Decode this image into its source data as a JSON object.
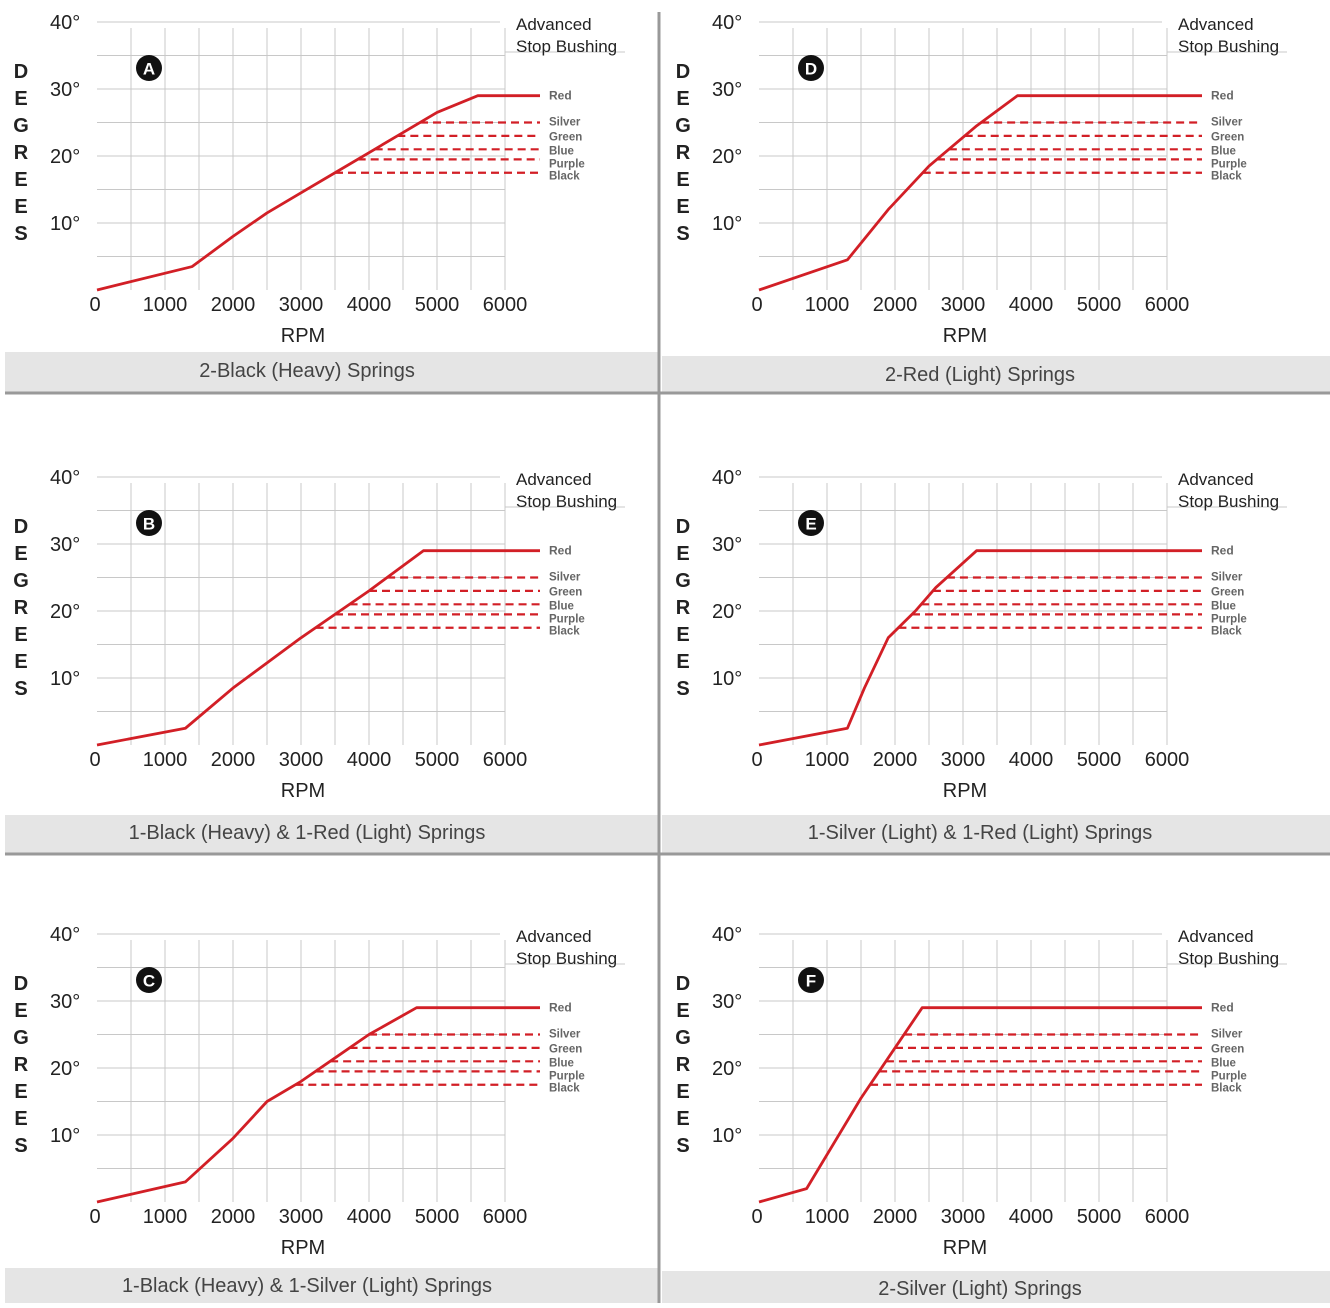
{
  "colors": {
    "curve": "#d21f26",
    "grid": "#c8c8c8",
    "caption_bg": "#e5e5e5",
    "divider": "#999999",
    "text": "#222222",
    "badge": "#111111"
  },
  "chart_data": [
    {
      "type": "line",
      "badge": "A",
      "caption": "2-Black (Heavy) Springs",
      "xlabel": "RPM",
      "ylabel": [
        "D",
        "E",
        "G",
        "R",
        "E",
        "E",
        "S"
      ],
      "xticks": [
        "0",
        "1000",
        "2000",
        "3000",
        "4000",
        "5000",
        "6000"
      ],
      "yticks": [
        "10°",
        "20°",
        "30°",
        "40°"
      ],
      "xlim": [
        0,
        6000
      ],
      "ylim": [
        0,
        40
      ],
      "bushing_label": [
        "Advanced",
        "Stop Bushing"
      ],
      "curve": [
        [
          0,
          0
        ],
        [
          1400,
          3.5
        ],
        [
          2000,
          8
        ],
        [
          2500,
          11.5
        ],
        [
          3000,
          14.5
        ],
        [
          3500,
          17.5
        ],
        [
          4000,
          20.5
        ],
        [
          4500,
          23.5
        ],
        [
          5000,
          26.5
        ],
        [
          5600,
          29
        ]
      ],
      "stops": [
        {
          "label": "Red",
          "degrees": 29
        },
        {
          "label": "Silver",
          "degrees": 25
        },
        {
          "label": "Green",
          "degrees": 23
        },
        {
          "label": "Blue",
          "degrees": 21
        },
        {
          "label": "Purple",
          "degrees": 19.5
        },
        {
          "label": "Black",
          "degrees": 17.5
        }
      ]
    },
    {
      "type": "line",
      "badge": "D",
      "caption": "2-Red (Light) Springs",
      "xlabel": "RPM",
      "ylabel": [
        "D",
        "E",
        "G",
        "R",
        "E",
        "E",
        "S"
      ],
      "xticks": [
        "0",
        "1000",
        "2000",
        "3000",
        "4000",
        "5000",
        "6000"
      ],
      "yticks": [
        "10°",
        "20°",
        "30°",
        "40°"
      ],
      "xlim": [
        0,
        6000
      ],
      "ylim": [
        0,
        40
      ],
      "bushing_label": [
        "Advanced",
        "Stop Bushing"
      ],
      "curve": [
        [
          0,
          0
        ],
        [
          1300,
          4.5
        ],
        [
          1900,
          12
        ],
        [
          2500,
          18.5
        ],
        [
          3200,
          24.5
        ],
        [
          3800,
          29
        ]
      ],
      "stops": [
        {
          "label": "Red",
          "degrees": 29
        },
        {
          "label": "Silver",
          "degrees": 25
        },
        {
          "label": "Green",
          "degrees": 23
        },
        {
          "label": "Blue",
          "degrees": 21
        },
        {
          "label": "Purple",
          "degrees": 19.5
        },
        {
          "label": "Black",
          "degrees": 17.5
        }
      ]
    },
    {
      "type": "line",
      "badge": "B",
      "caption": "1-Black (Heavy) & 1-Red (Light) Springs",
      "xlabel": "RPM",
      "ylabel": [
        "D",
        "E",
        "G",
        "R",
        "E",
        "E",
        "S"
      ],
      "xticks": [
        "0",
        "1000",
        "2000",
        "3000",
        "4000",
        "5000",
        "6000"
      ],
      "yticks": [
        "10°",
        "20°",
        "30°",
        "40°"
      ],
      "xlim": [
        0,
        6000
      ],
      "ylim": [
        0,
        40
      ],
      "bushing_label": [
        "Advanced",
        "Stop Bushing"
      ],
      "curve": [
        [
          0,
          0
        ],
        [
          1300,
          2.5
        ],
        [
          2000,
          8.5
        ],
        [
          3000,
          16
        ],
        [
          4000,
          23
        ],
        [
          4800,
          29
        ]
      ],
      "stops": [
        {
          "label": "Red",
          "degrees": 29
        },
        {
          "label": "Silver",
          "degrees": 25
        },
        {
          "label": "Green",
          "degrees": 23
        },
        {
          "label": "Blue",
          "degrees": 21
        },
        {
          "label": "Purple",
          "degrees": 19.5
        },
        {
          "label": "Black",
          "degrees": 17.5
        }
      ]
    },
    {
      "type": "line",
      "badge": "E",
      "caption": "1-Silver (Light) & 1-Red (Light) Springs",
      "xlabel": "RPM",
      "ylabel": [
        "D",
        "E",
        "G",
        "R",
        "E",
        "E",
        "S"
      ],
      "xticks": [
        "0",
        "1000",
        "2000",
        "3000",
        "4000",
        "5000",
        "6000"
      ],
      "yticks": [
        "10°",
        "20°",
        "30°",
        "40°"
      ],
      "xlim": [
        0,
        6000
      ],
      "ylim": [
        0,
        40
      ],
      "bushing_label": [
        "Advanced",
        "Stop Bushing"
      ],
      "curve": [
        [
          0,
          0
        ],
        [
          1300,
          2.5
        ],
        [
          1550,
          8.5
        ],
        [
          1900,
          16
        ],
        [
          2300,
          20
        ],
        [
          2600,
          23.5
        ],
        [
          3200,
          29
        ]
      ],
      "stops": [
        {
          "label": "Red",
          "degrees": 29
        },
        {
          "label": "Silver",
          "degrees": 25
        },
        {
          "label": "Green",
          "degrees": 23
        },
        {
          "label": "Blue",
          "degrees": 21
        },
        {
          "label": "Purple",
          "degrees": 19.5
        },
        {
          "label": "Black",
          "degrees": 17.5
        }
      ]
    },
    {
      "type": "line",
      "badge": "C",
      "caption": "1-Black (Heavy) & 1-Silver (Light) Springs",
      "xlabel": "RPM",
      "ylabel": [
        "D",
        "E",
        "G",
        "R",
        "E",
        "E",
        "S"
      ],
      "xticks": [
        "0",
        "1000",
        "2000",
        "3000",
        "4000",
        "5000",
        "6000"
      ],
      "yticks": [
        "10°",
        "20°",
        "30°",
        "40°"
      ],
      "xlim": [
        0,
        6000
      ],
      "ylim": [
        0,
        40
      ],
      "bushing_label": [
        "Advanced",
        "Stop Bushing"
      ],
      "curve": [
        [
          0,
          0
        ],
        [
          1300,
          3
        ],
        [
          2000,
          9.5
        ],
        [
          2500,
          15
        ],
        [
          3000,
          18
        ],
        [
          3500,
          21.5
        ],
        [
          4000,
          25
        ],
        [
          4700,
          29
        ]
      ],
      "stops": [
        {
          "label": "Red",
          "degrees": 29
        },
        {
          "label": "Silver",
          "degrees": 25
        },
        {
          "label": "Green",
          "degrees": 23
        },
        {
          "label": "Blue",
          "degrees": 21
        },
        {
          "label": "Purple",
          "degrees": 19.5
        },
        {
          "label": "Black",
          "degrees": 17.5
        }
      ]
    },
    {
      "type": "line",
      "badge": "F",
      "caption": "2-Silver (Light) Springs",
      "xlabel": "RPM",
      "ylabel": [
        "D",
        "E",
        "G",
        "R",
        "E",
        "E",
        "S"
      ],
      "xticks": [
        "0",
        "1000",
        "2000",
        "3000",
        "4000",
        "5000",
        "6000"
      ],
      "yticks": [
        "10°",
        "20°",
        "30°",
        "40°"
      ],
      "xlim": [
        0,
        6000
      ],
      "ylim": [
        0,
        40
      ],
      "bushing_label": [
        "Advanced",
        "Stop Bushing"
      ],
      "curve": [
        [
          0,
          0
        ],
        [
          700,
          2
        ],
        [
          1500,
          15.5
        ],
        [
          2400,
          29
        ]
      ],
      "stops": [
        {
          "label": "Red",
          "degrees": 29
        },
        {
          "label": "Silver",
          "degrees": 25
        },
        {
          "label": "Green",
          "degrees": 23
        },
        {
          "label": "Blue",
          "degrees": 21
        },
        {
          "label": "Purple",
          "degrees": 19.5
        },
        {
          "label": "Black",
          "degrees": 17.5
        }
      ]
    }
  ]
}
